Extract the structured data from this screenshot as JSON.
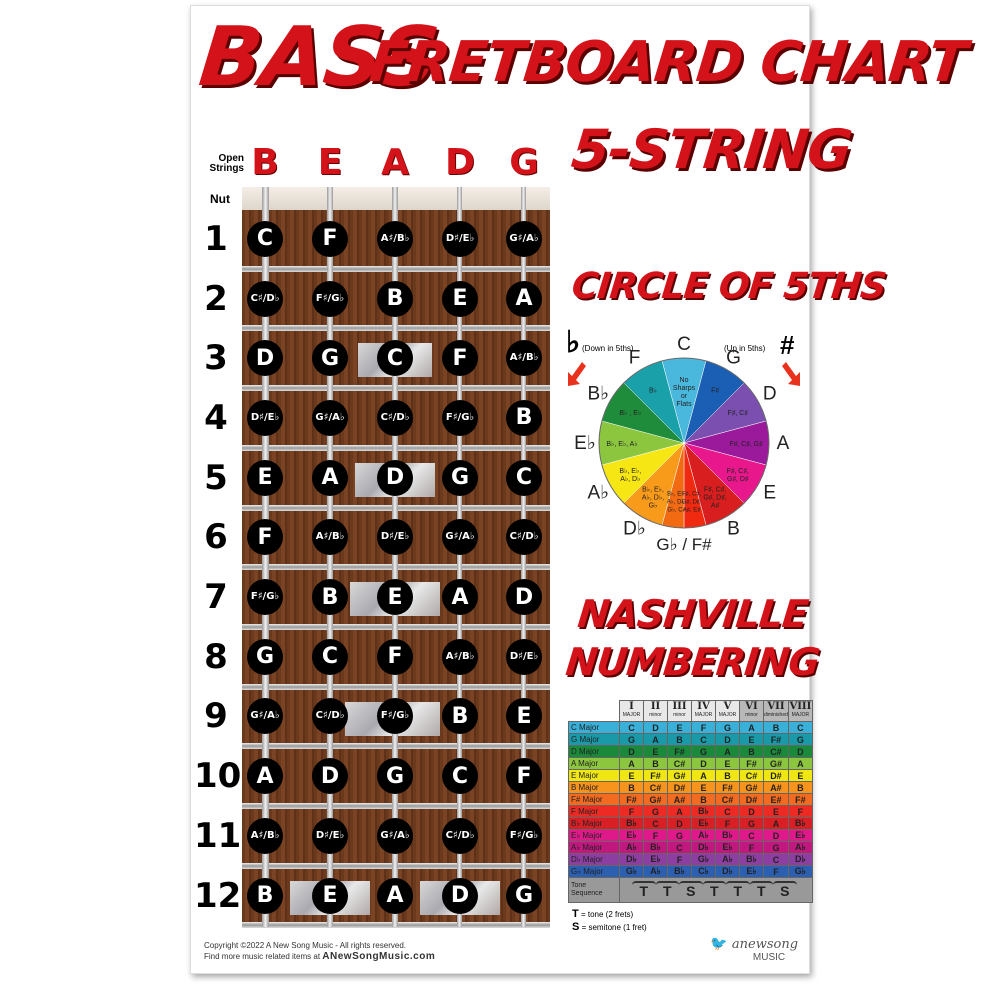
{
  "title": {
    "bass": "BASS",
    "main": "FRETBOARD CHART",
    "sub": "5-STRING"
  },
  "fretboard": {
    "open_label": "Open Strings",
    "nut_label": "Nut",
    "strings": [
      "B",
      "E",
      "A",
      "D",
      "G"
    ],
    "inlay_frets": [
      3,
      5,
      7,
      9,
      12
    ],
    "frets": [
      {
        "num": "1",
        "notes": [
          "C",
          "F",
          "A♯/B♭",
          "D♯/E♭",
          "G♯/A♭"
        ]
      },
      {
        "num": "2",
        "notes": [
          "C♯/D♭",
          "F♯/G♭",
          "B",
          "E",
          "A"
        ]
      },
      {
        "num": "3",
        "notes": [
          "D",
          "G",
          "C",
          "F",
          "A♯/B♭"
        ]
      },
      {
        "num": "4",
        "notes": [
          "D♯/E♭",
          "G♯/A♭",
          "C♯/D♭",
          "F♯/G♭",
          "B"
        ]
      },
      {
        "num": "5",
        "notes": [
          "E",
          "A",
          "D",
          "G",
          "C"
        ]
      },
      {
        "num": "6",
        "notes": [
          "F",
          "A♯/B♭",
          "D♯/E♭",
          "G♯/A♭",
          "C♯/D♭"
        ]
      },
      {
        "num": "7",
        "notes": [
          "F♯/G♭",
          "B",
          "E",
          "A",
          "D"
        ]
      },
      {
        "num": "8",
        "notes": [
          "G",
          "C",
          "F",
          "A♯/B♭",
          "D♯/E♭"
        ]
      },
      {
        "num": "9",
        "notes": [
          "G♯/A♭",
          "C♯/D♭",
          "F♯/G♭",
          "B",
          "E"
        ]
      },
      {
        "num": "10",
        "notes": [
          "A",
          "D",
          "G",
          "C",
          "F"
        ]
      },
      {
        "num": "11",
        "notes": [
          "A♯/B♭",
          "D♯/E♭",
          "G♯/A♭",
          "C♯/D♭",
          "F♯/G♭"
        ]
      },
      {
        "num": "12",
        "notes": [
          "B",
          "E",
          "A",
          "D",
          "G"
        ]
      }
    ]
  },
  "circle": {
    "title": "CIRCLE OF 5THS",
    "flat_symbol": "♭",
    "flat_caption": "(Down in 5ths)",
    "sharp_symbol": "#",
    "sharp_caption": "(Up in 5ths)",
    "arrow_color": "#e8321e",
    "wedges": [
      {
        "key": "C",
        "inner": [
          "No",
          "Sharps",
          "or",
          "Flats"
        ],
        "color": "#4ab8dc"
      },
      {
        "key": "G",
        "inner": [
          "F♯"
        ],
        "color": "#1a5fb4"
      },
      {
        "key": "D",
        "inner": [
          "F♯, C♯"
        ],
        "color": "#7b4fb0"
      },
      {
        "key": "A",
        "inner": [
          "F♯, C♯, G♯"
        ],
        "color": "#9b1a9b"
      },
      {
        "key": "E",
        "inner": [
          "F♯, C♯,",
          "G♯, D♯"
        ],
        "color": "#e8188c"
      },
      {
        "key": "B",
        "inner": [
          "F♯, C♯,",
          "G♯, D♯,",
          "A♯"
        ],
        "color": "#d81e1e"
      },
      {
        "key": "F#",
        "inner": [
          "F♯, C♯,",
          "G♯, D♯,",
          "A♯, E♯"
        ],
        "color": "#f02a10"
      },
      {
        "key": "Gb",
        "inner": [
          "B♭, E♭,",
          "A♭, D♭,",
          "G♭, C♭"
        ],
        "color": "#f26a12"
      },
      {
        "key": "Db",
        "inner": [
          "B♭, E♭,",
          "A♭, D♭,",
          "G♭"
        ],
        "color": "#f89a1a"
      },
      {
        "key": "Ab",
        "inner": [
          "B♭, E♭,",
          "A♭, D♭"
        ],
        "color": "#f5e614"
      },
      {
        "key": "Eb",
        "inner": [
          "B♭, E♭, A♭"
        ],
        "color": "#8cc63f"
      },
      {
        "key": "Bb",
        "inner": [
          "B♭ , E♭"
        ],
        "color": "#1e8c3a"
      },
      {
        "key": "F",
        "inner": [
          "B♭"
        ],
        "color": "#1aa0a8"
      }
    ],
    "outer_labels": [
      "C",
      "G",
      "D",
      "A",
      "E",
      "B",
      "G♭ / F#",
      "D♭",
      "A♭",
      "E♭",
      "B♭",
      "F"
    ]
  },
  "nashville": {
    "title_line1": "NASHVILLE",
    "title_line2": "NUMBERING",
    "degrees": [
      "I",
      "II",
      "III",
      "IV",
      "V",
      "VI",
      "VII",
      "VIII"
    ],
    "qualities": [
      "MAJOR",
      "minor",
      "minor",
      "MAJOR",
      "MAJOR",
      "minor",
      "diminished",
      "MAJOR"
    ],
    "rows": [
      {
        "key": "C Major",
        "color": "#3ab0d8",
        "notes": [
          "C",
          "D",
          "E",
          "F",
          "G",
          "A",
          "B",
          "C"
        ]
      },
      {
        "key": "G Major",
        "color": "#1a9aa8",
        "notes": [
          "G",
          "A",
          "B",
          "C",
          "D",
          "E",
          "F#",
          "G"
        ]
      },
      {
        "key": "D Major",
        "color": "#1a8a3a",
        "notes": [
          "D",
          "E",
          "F#",
          "G",
          "A",
          "B",
          "C#",
          "D"
        ]
      },
      {
        "key": "A Major",
        "color": "#8cc63f",
        "notes": [
          "A",
          "B",
          "C#",
          "D",
          "E",
          "F#",
          "G#",
          "A"
        ]
      },
      {
        "key": "E Major",
        "color": "#f0e614",
        "notes": [
          "E",
          "F#",
          "G#",
          "A",
          "B",
          "C#",
          "D#",
          "E"
        ]
      },
      {
        "key": "B Major",
        "color": "#f7941d",
        "notes": [
          "B",
          "C#",
          "D#",
          "E",
          "F#",
          "G#",
          "A#",
          "B"
        ]
      },
      {
        "key": "F# Major",
        "color": "#f36b21",
        "notes": [
          "F#",
          "G#",
          "A#",
          "B",
          "C#",
          "D#",
          "E#",
          "F#"
        ]
      },
      {
        "key": "F Major",
        "color": "#ee2a24",
        "notes": [
          "F",
          "G",
          "A",
          "B♭",
          "C",
          "D",
          "E",
          "F"
        ]
      },
      {
        "key": "B♭ Major",
        "color": "#d91f26",
        "notes": [
          "B♭",
          "C",
          "D",
          "E♭",
          "F",
          "G",
          "A",
          "B♭"
        ]
      },
      {
        "key": "E♭ Major",
        "color": "#e0198a",
        "notes": [
          "E♭",
          "F",
          "G",
          "A♭",
          "B♭",
          "C",
          "D",
          "E♭"
        ]
      },
      {
        "key": "A♭ Major",
        "color": "#c0187f",
        "notes": [
          "A♭",
          "B♭",
          "C",
          "D♭",
          "E♭",
          "F",
          "G",
          "A♭"
        ]
      },
      {
        "key": "D♭ Major",
        "color": "#8c3fa0",
        "notes": [
          "D♭",
          "E♭",
          "F",
          "G♭",
          "A♭",
          "B♭",
          "C",
          "D♭"
        ]
      },
      {
        "key": "G♭ Major",
        "color": "#2c5fb0",
        "notes": [
          "G♭",
          "A♭",
          "B♭",
          "C♭",
          "D♭",
          "E♭",
          "F",
          "G♭"
        ]
      }
    ],
    "tone_label": "Tone Sequence",
    "tone_sequence": [
      "T",
      "T",
      "S",
      "T",
      "T",
      "T",
      "S"
    ],
    "legend_t": "T",
    "legend_t_text": "= tone (2 frets)",
    "legend_s": "S",
    "legend_s_text": "= semitone (1 fret)"
  },
  "footer": {
    "copyright": "Copyright ©2022 A New Song Music - All rights reserved.",
    "find_more": "Find more music related  items at",
    "site": "ANewSongMusic.com",
    "logo_text": "anewsong",
    "logo_sub": "MUSIC"
  }
}
